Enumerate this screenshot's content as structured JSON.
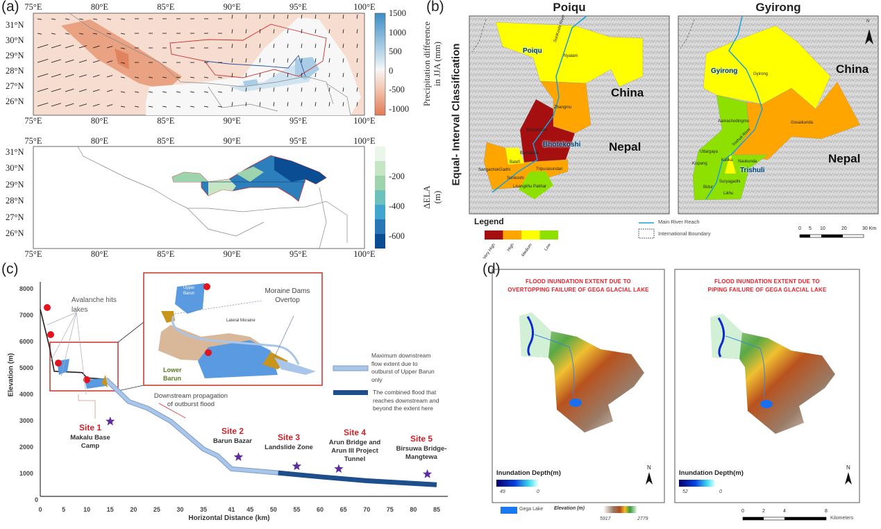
{
  "panel_a": {
    "label": "(a)",
    "lon_ticks": [
      "75°E",
      "80°E",
      "85°E",
      "90°E",
      "95°E",
      "100°E"
    ],
    "lat_ticks": [
      "31°N",
      "30°N",
      "29°N",
      "28°N",
      "27°N",
      "26°N"
    ],
    "top_map": {
      "colorbar": {
        "title_line1": "Precipitation difference",
        "title_line2": "in JJA (mm)",
        "ticks": [
          "1500",
          "1000",
          "500",
          "0",
          "-500",
          "-1000"
        ],
        "colors": {
          "positive": "#3d8dc4",
          "zero": "#f7f7f7",
          "negative": "#e07b55"
        }
      }
    },
    "bottom_map": {
      "colorbar": {
        "title_line1": "ΔELA",
        "title_line2": "(m)",
        "ticks": [
          "-200",
          "-400",
          "-600"
        ],
        "colors": [
          "#eaf6ea",
          "#c6e6c3",
          "#9dd3ad",
          "#6cc1bc",
          "#42a5cf",
          "#2878b8",
          "#0b4d93"
        ]
      }
    }
  },
  "panel_b": {
    "label": "(b)",
    "side_title": "Equal- Interval Classification",
    "maps": [
      {
        "title": "Poiqu",
        "basin_label": "Poiqu",
        "river_label": "SunKoshi River",
        "countries": [
          "China",
          "Nepal"
        ],
        "second_basin_label": "Bhotekoshi",
        "places": [
          "Nyalam",
          "Zhangmu",
          "Bhotekoshi",
          "Barhabise",
          "Balefi",
          "SangachokGadhi",
          "Tripurasundari",
          "Sunkoshi",
          "Lisangkhu Pakhar"
        ]
      },
      {
        "title": "Gyirong",
        "basin_label": "Gyirong",
        "river_label": "Trishuli River",
        "countries": [
          "China",
          "Nepal"
        ],
        "second_basin_label": "Trishuli",
        "places": [
          "Gyirong",
          "Aamachodingmo",
          "Gosaikunda",
          "Uttargaya",
          "Kispang",
          "Kalika",
          "Naukunda",
          "Suryagadhi",
          "Bidur",
          "Likhu"
        ],
        "north_arrow": "N"
      }
    ],
    "legend": {
      "title": "Legend",
      "classes": [
        {
          "label": "Very High",
          "color": "#a50f0f"
        },
        {
          "label": "High",
          "color": "#ffa500"
        },
        {
          "label": "Medium",
          "color": "#ffff00"
        },
        {
          "label": "Low",
          "color": "#8ee000"
        }
      ],
      "river": "Main River Reach",
      "boundary": "International Boundary",
      "scale_ticks": [
        "0",
        "5",
        "10",
        "20",
        "30 Km"
      ]
    }
  },
  "panel_c": {
    "label": "(c)",
    "annotations": {
      "avalanche": [
        "Avalanche hits",
        "lakes"
      ],
      "moraine": [
        "Moraine Dams",
        "Overtop"
      ],
      "lateral_moraine": "Lateral Moraine",
      "upper_barun": [
        "Upper",
        "Barun"
      ],
      "lower_barun": [
        "Lower",
        "Barun"
      ],
      "propagation": [
        "Downstream propagation",
        "of outburst flood"
      ]
    },
    "legend": {
      "light": [
        "Maximum downstream",
        "flow extent due to",
        "outburst of Upper Barun",
        "only"
      ],
      "dark": [
        "The combined flood that",
        "reaches downstream and",
        "beyond the extent here"
      ]
    },
    "sites": [
      {
        "name": "Site 1",
        "desc": [
          "Makalu Base",
          "Camp"
        ]
      },
      {
        "name": "Site 2",
        "desc": [
          "Barun Bazar"
        ]
      },
      {
        "name": "Site 3",
        "desc": [
          "Landslide Zone"
        ]
      },
      {
        "name": "Site 4",
        "desc": [
          "Arun Bridge and",
          "Arun III Project",
          "Tunnel"
        ]
      },
      {
        "name": "Site 5",
        "desc": [
          "Birsuwa Bridge-",
          "Mangtewa"
        ]
      }
    ]
  },
  "chart_data": {
    "type": "line",
    "xlabel": "Horizontal Distance (km)",
    "ylabel": "Elevation (m)",
    "xlim": [
      0,
      85
    ],
    "ylim": [
      0,
      8000
    ],
    "x_ticks": [
      "0",
      "5",
      "10",
      "15",
      "20",
      "25",
      "30",
      "35",
      "41",
      "45",
      "50",
      "55",
      "60",
      "65",
      "70",
      "75",
      "80",
      "85"
    ],
    "y_ticks": [
      "0",
      "1000",
      "2000",
      "3000",
      "4000",
      "5000",
      "6000",
      "7000",
      "8000"
    ],
    "grid": false,
    "legend_position": "right",
    "profile": {
      "x": [
        0,
        2,
        3,
        9,
        10,
        14
      ],
      "y": [
        7250,
        5800,
        4900,
        4850,
        4650,
        4600
      ]
    },
    "series": [
      {
        "name": "Maximum downstream flow extent due to outburst of Upper Barun only",
        "color": "#a9c6ea",
        "x": [
          14,
          17,
          19,
          23,
          28,
          35,
          38,
          41,
          51
        ],
        "y": [
          4600,
          4100,
          3750,
          3500,
          3000,
          1950,
          1700,
          1200,
          1050
        ]
      },
      {
        "name": "The combined flood that reaches downstream and beyond the extent here",
        "color": "#1f4e8c",
        "x": [
          51,
          60,
          70,
          85
        ],
        "y": [
          1050,
          900,
          750,
          600
        ]
      }
    ],
    "site_markers": {
      "x": [
        15,
        42.5,
        55,
        64,
        83
      ],
      "y": [
        3000,
        1650,
        1300,
        1200,
        1000
      ],
      "color": "#5b2d9e"
    }
  },
  "panel_d": {
    "label": "(d)",
    "maps": [
      {
        "title": [
          "FLOOD INUNDATION EXTENT DUE TO",
          "OVERTOPPING FAILURE OF GEGA GLACIAL LAKE"
        ],
        "legend_title": "Inundation Depth(m)",
        "max": "49",
        "min": "0",
        "north": "N"
      },
      {
        "title": [
          "FLOOD INUNDATION EXTENT DUE TO",
          "PIPING FAILURE OF GEGA GLACIAL LAKE"
        ],
        "legend_title": "Inundation Depth(m)",
        "max": "52",
        "min": "0",
        "north": "N"
      }
    ],
    "lake_label": "Gega Lake",
    "elevation_label": "Elevation (m)",
    "elevation_range": [
      "5917",
      "2779"
    ],
    "scale_ticks": [
      "0",
      "2",
      "4",
      "8"
    ],
    "scale_unit": "Kilometers"
  }
}
